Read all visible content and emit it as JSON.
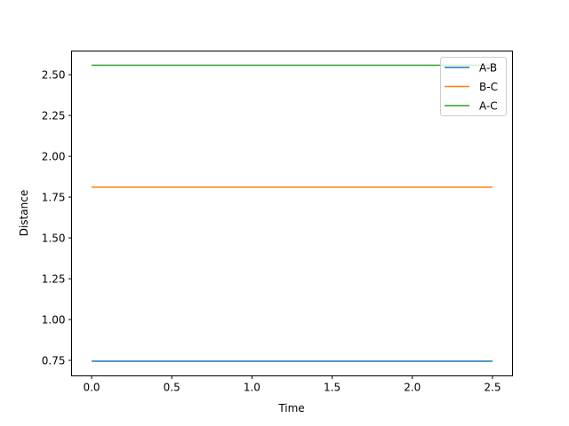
{
  "chart_data": {
    "type": "line",
    "title": "",
    "xlabel": "Time",
    "ylabel": "Distance",
    "xlim": [
      -0.125,
      2.625
    ],
    "ylim": [
      0.655,
      2.645
    ],
    "xticks": [
      0.0,
      0.5,
      1.0,
      1.5,
      2.0,
      2.5
    ],
    "xtick_labels": [
      "0.0",
      "0.5",
      "1.0",
      "1.5",
      "2.0",
      "2.5"
    ],
    "yticks": [
      0.75,
      1.0,
      1.25,
      1.5,
      1.75,
      2.0,
      2.25,
      2.5
    ],
    "ytick_labels": [
      "0.75",
      "1.00",
      "1.25",
      "1.50",
      "1.75",
      "2.00",
      "2.25",
      "2.50"
    ],
    "grid": false,
    "legend_position": "top-right",
    "series": [
      {
        "name": "A-B",
        "color": "#1f77b4",
        "x": [
          0.0,
          2.5
        ],
        "y": [
          0.745,
          0.745
        ]
      },
      {
        "name": "B-C",
        "color": "#ff7f0e",
        "x": [
          0.0,
          2.5
        ],
        "y": [
          1.811,
          1.811
        ]
      },
      {
        "name": "A-C",
        "color": "#2ca02c",
        "x": [
          0.0,
          2.5
        ],
        "y": [
          2.558,
          2.558
        ]
      }
    ]
  }
}
